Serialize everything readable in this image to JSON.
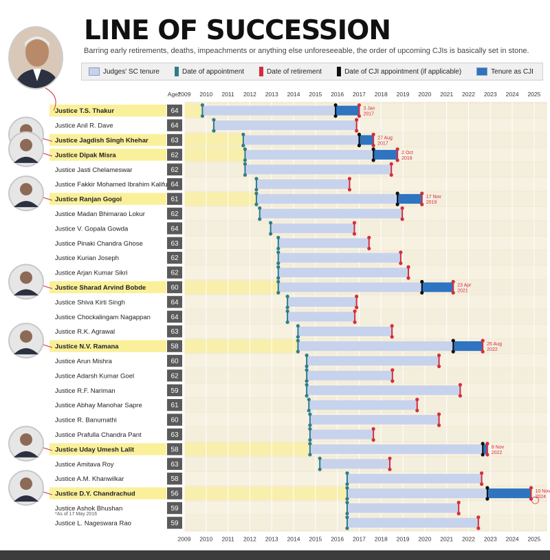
{
  "header": {
    "title": "LINE OF SUCCESSION",
    "subtitle": "Barring early retirements, deaths, impeachments or anything else unforeseeable, the order of upcoming CJIs is basically set in stone."
  },
  "legend": {
    "items": [
      {
        "label": "Judges' SC tenure",
        "kind": "swatch",
        "color": "#c7d3ec"
      },
      {
        "label": "Date of appointment",
        "kind": "pin",
        "color": "#2f7d8a"
      },
      {
        "label": "Date of retirement",
        "kind": "pin",
        "color": "#d42e3c"
      },
      {
        "label": "Date of CJI appointment (if applicable)",
        "kind": "pin",
        "color": "#111111"
      },
      {
        "label": "Tenure as CJI",
        "kind": "swatch",
        "color": "#2e74c0"
      }
    ]
  },
  "age_header": "Age*",
  "footnote": "*As of 17 May 2016",
  "colors": {
    "tenure": "#c7d3ec",
    "appointment": "#2f7d8a",
    "retirement": "#d42e3c",
    "cji_appointment": "#111111",
    "cji_tenure": "#2e74c0",
    "highlight_row": "#faf09a",
    "age_box": "#5a5a5a",
    "row_alt": "#f7f1e1",
    "row_base": "#f2ebd7"
  },
  "chart_data": {
    "type": "gantt",
    "x_axis": {
      "ticks": [
        "2009",
        "2010",
        "2011",
        "2012",
        "2013",
        "2014",
        "2015",
        "2016",
        "2017",
        "2018",
        "2019",
        "2020",
        "2021",
        "2022",
        "2023",
        "2024",
        "2025"
      ],
      "range": [
        2009.0,
        2025.6
      ]
    },
    "rows": [
      {
        "name": "Justice T.S. Thakur",
        "age": 64,
        "cji": true,
        "appointed": 2009.83,
        "retired": 2017.0,
        "cji_start": 2015.92,
        "cji_end": 2017.0,
        "cji_end_label": "3 Jan 2017"
      },
      {
        "name": "Justice Anil R. Dave",
        "age": 64,
        "cji": false,
        "appointed": 2010.35,
        "retired": 2016.88
      },
      {
        "name": "Justice Jagdish Singh Khehar",
        "age": 63,
        "cji": true,
        "appointed": 2011.7,
        "retired": 2017.65,
        "cji_start": 2017.0,
        "cji_end": 2017.65,
        "cji_end_label": "27 Aug 2017"
      },
      {
        "name": "Justice Dipak Misra",
        "age": 62,
        "cji": true,
        "appointed": 2011.78,
        "retired": 2018.75,
        "cji_start": 2017.65,
        "cji_end": 2018.75,
        "cji_end_label": "2 Oct 2018"
      },
      {
        "name": "Justice Jasti Chelameswar",
        "age": 62,
        "cji": false,
        "appointed": 2011.78,
        "retired": 2018.47
      },
      {
        "name": "Justice Fakkir Mohamed Ibrahim Kalifulla",
        "age": 64,
        "cji": false,
        "appointed": 2012.3,
        "retired": 2016.56
      },
      {
        "name": "Justice Ranjan Gogoi",
        "age": 61,
        "cji": true,
        "appointed": 2012.3,
        "retired": 2019.87,
        "cji_start": 2018.75,
        "cji_end": 2019.87,
        "cji_end_label": "17 Nov 2019"
      },
      {
        "name": "Justice Madan Bhimarao Lokur",
        "age": 62,
        "cji": false,
        "appointed": 2012.45,
        "retired": 2018.97
      },
      {
        "name": "Justice V. Gopala Gowda",
        "age": 64,
        "cji": false,
        "appointed": 2012.95,
        "retired": 2016.78
      },
      {
        "name": "Justice Pinaki Chandra Ghose",
        "age": 63,
        "cji": false,
        "appointed": 2013.3,
        "retired": 2017.45
      },
      {
        "name": "Justice Kurian Joseph",
        "age": 62,
        "cji": false,
        "appointed": 2013.3,
        "retired": 2018.9
      },
      {
        "name": "Justice Arjan Kumar Sikri",
        "age": 62,
        "cji": false,
        "appointed": 2013.3,
        "retired": 2019.25
      },
      {
        "name": "Justice Sharad Arvind Bobde",
        "age": 60,
        "cji": true,
        "appointed": 2013.3,
        "retired": 2021.3,
        "cji_start": 2019.87,
        "cji_end": 2021.3,
        "cji_end_label": "23 Apr 2021"
      },
      {
        "name": "Justice Shiva Kirti Singh",
        "age": 64,
        "cji": false,
        "appointed": 2013.72,
        "retired": 2016.88
      },
      {
        "name": "Justice Chockalingam Nagappan",
        "age": 64,
        "cji": false,
        "appointed": 2013.72,
        "retired": 2016.8
      },
      {
        "name": "Justice R.K. Agrawal",
        "age": 63,
        "cji": false,
        "appointed": 2014.2,
        "retired": 2018.5
      },
      {
        "name": "Justice N.V. Ramana",
        "age": 58,
        "cji": true,
        "appointed": 2014.2,
        "retired": 2022.65,
        "cji_start": 2021.3,
        "cji_end": 2022.65,
        "cji_end_label": "26 Aug 2022"
      },
      {
        "name": "Justice Arun Mishra",
        "age": 60,
        "cji": false,
        "appointed": 2014.6,
        "retired": 2020.65
      },
      {
        "name": "Justice Adarsh Kumar Goel",
        "age": 62,
        "cji": false,
        "appointed": 2014.6,
        "retired": 2018.52
      },
      {
        "name": "Justice R.F. Nariman",
        "age": 59,
        "cji": false,
        "appointed": 2014.6,
        "retired": 2021.62
      },
      {
        "name": "Justice Abhay Manohar Sapre",
        "age": 61,
        "cji": false,
        "appointed": 2014.7,
        "retired": 2019.65
      },
      {
        "name": "Justice R. Banumathi",
        "age": 60,
        "cji": false,
        "appointed": 2014.75,
        "retired": 2020.65
      },
      {
        "name": "Justice Prafulla Chandra Pant",
        "age": 63,
        "cji": false,
        "appointed": 2014.75,
        "retired": 2017.65
      },
      {
        "name": "Justice Uday Umesh Lalit",
        "age": 58,
        "cji": true,
        "appointed": 2014.75,
        "retired": 2022.86,
        "cji_start": 2022.65,
        "cji_end": 2022.86,
        "cji_end_label": "8 Nov 2022"
      },
      {
        "name": "Justice Amitava Roy",
        "age": 63,
        "cji": false,
        "appointed": 2015.2,
        "retired": 2018.4
      },
      {
        "name": "Justice A.M. Khanwilkar",
        "age": 58,
        "cji": false,
        "appointed": 2016.45,
        "retired": 2022.6
      },
      {
        "name": "Justice D.Y. Chandrachud",
        "age": 56,
        "cji": true,
        "appointed": 2016.45,
        "retired": 2024.86,
        "cji_start": 2022.86,
        "cji_end": 2024.86,
        "cji_end_label": "10 Nov 2024"
      },
      {
        "name": "Justice Ashok Bhushan",
        "age": 59,
        "cji": false,
        "appointed": 2016.45,
        "retired": 2021.55
      },
      {
        "name": "Justice L. Nageswara Rao",
        "age": 59,
        "cji": false,
        "appointed": 2016.45,
        "retired": 2022.45
      }
    ]
  }
}
